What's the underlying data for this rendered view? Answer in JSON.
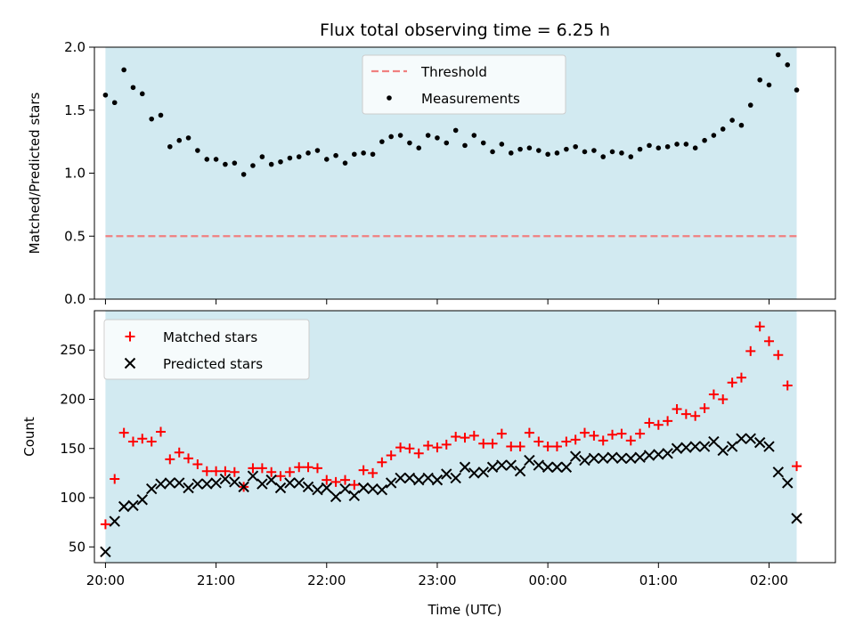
{
  "figure": {
    "title": "Flux total observing time = 6.25 h",
    "xlabel": "Time (UTC)",
    "xticks": [
      "20:00",
      "21:00",
      "22:00",
      "23:00",
      "00:00",
      "01:00",
      "02:00"
    ]
  },
  "chart_data": [
    {
      "type": "scatter",
      "title": "Flux total observing time = 6.25 h",
      "xlabel": "",
      "ylabel": "Matched/Predicted stars",
      "xlim": [
        -0.1,
        6.6
      ],
      "ylim": [
        0,
        2.0
      ],
      "yticks": [
        0.0,
        0.5,
        1.0,
        1.5,
        2.0
      ],
      "ytick_labels": [
        "0.0",
        "0.5",
        "1.0",
        "1.5",
        "2.0"
      ],
      "shaded_span": [
        0,
        6.25
      ],
      "shade_color": "#add8e6",
      "threshold": {
        "name": "Threshold",
        "y": 0.5,
        "color": "#f08080",
        "style": "dashed"
      },
      "legend_position": "upper center",
      "series": [
        {
          "name": "Measurements",
          "marker": "dot",
          "color": "#000000",
          "x": [
            0.0,
            0.083,
            0.167,
            0.25,
            0.333,
            0.417,
            0.5,
            0.583,
            0.667,
            0.75,
            0.833,
            0.917,
            1.0,
            1.083,
            1.167,
            1.25,
            1.333,
            1.417,
            1.5,
            1.583,
            1.667,
            1.75,
            1.833,
            1.917,
            2.0,
            2.083,
            2.167,
            2.25,
            2.333,
            2.417,
            2.5,
            2.583,
            2.667,
            2.75,
            2.833,
            2.917,
            3.0,
            3.083,
            3.167,
            3.25,
            3.333,
            3.417,
            3.5,
            3.583,
            3.667,
            3.75,
            3.833,
            3.917,
            4.0,
            4.083,
            4.167,
            4.25,
            4.333,
            4.417,
            4.5,
            4.583,
            4.667,
            4.75,
            4.833,
            4.917,
            5.0,
            5.083,
            5.167,
            5.25,
            5.333,
            5.417,
            5.5,
            5.583,
            5.667,
            5.75,
            5.833,
            5.917,
            6.0,
            6.083,
            6.167,
            6.25
          ],
          "y": [
            1.62,
            1.56,
            1.82,
            1.68,
            1.63,
            1.43,
            1.46,
            1.21,
            1.26,
            1.28,
            1.18,
            1.11,
            1.11,
            1.07,
            1.08,
            0.99,
            1.06,
            1.13,
            1.07,
            1.09,
            1.12,
            1.13,
            1.16,
            1.18,
            1.11,
            1.14,
            1.08,
            1.15,
            1.16,
            1.15,
            1.25,
            1.29,
            1.3,
            1.24,
            1.2,
            1.3,
            1.28,
            1.24,
            1.34,
            1.22,
            1.3,
            1.24,
            1.17,
            1.23,
            1.16,
            1.19,
            1.2,
            1.18,
            1.15,
            1.16,
            1.19,
            1.21,
            1.17,
            1.18,
            1.13,
            1.17,
            1.16,
            1.13,
            1.19,
            1.22,
            1.2,
            1.21,
            1.23,
            1.23,
            1.2,
            1.26,
            1.3,
            1.35,
            1.42,
            1.38,
            1.54,
            1.74,
            1.7,
            1.94,
            1.86,
            1.66
          ]
        }
      ]
    },
    {
      "type": "scatter",
      "title": "",
      "xlabel": "Time (UTC)",
      "ylabel": "Count",
      "xlim": [
        -0.1,
        6.6
      ],
      "ylim": [
        34,
        290
      ],
      "yticks": [
        50,
        100,
        150,
        200,
        250
      ],
      "ytick_labels": [
        "50",
        "100",
        "150",
        "200",
        "250"
      ],
      "shaded_span": [
        0,
        6.25
      ],
      "shade_color": "#add8e6",
      "legend_position": "upper left",
      "series": [
        {
          "name": "Matched stars",
          "marker": "plus",
          "color": "#ff0000",
          "x": [
            0.0,
            0.083,
            0.167,
            0.25,
            0.333,
            0.417,
            0.5,
            0.583,
            0.667,
            0.75,
            0.833,
            0.917,
            1.0,
            1.083,
            1.167,
            1.25,
            1.333,
            1.417,
            1.5,
            1.583,
            1.667,
            1.75,
            1.833,
            1.917,
            2.0,
            2.083,
            2.167,
            2.25,
            2.333,
            2.417,
            2.5,
            2.583,
            2.667,
            2.75,
            2.833,
            2.917,
            3.0,
            3.083,
            3.167,
            3.25,
            3.333,
            3.417,
            3.5,
            3.583,
            3.667,
            3.75,
            3.833,
            3.917,
            4.0,
            4.083,
            4.167,
            4.25,
            4.333,
            4.417,
            4.5,
            4.583,
            4.667,
            4.75,
            4.833,
            4.917,
            5.0,
            5.083,
            5.167,
            5.25,
            5.333,
            5.417,
            5.5,
            5.583,
            5.667,
            5.75,
            5.833,
            5.917,
            6.0,
            6.083,
            6.167,
            6.25
          ],
          "y": [
            73,
            119,
            166,
            157,
            160,
            157,
            167,
            139,
            146,
            140,
            134,
            127,
            127,
            127,
            126,
            111,
            130,
            130,
            126,
            122,
            126,
            131,
            131,
            130,
            118,
            116,
            118,
            113,
            128,
            125,
            136,
            143,
            151,
            150,
            145,
            153,
            151,
            154,
            162,
            161,
            163,
            155,
            155,
            165,
            152,
            152,
            166,
            157,
            152,
            152,
            157,
            159,
            166,
            163,
            158,
            164,
            165,
            158,
            165,
            176,
            174,
            178,
            190,
            185,
            183,
            191,
            205,
            200,
            217,
            222,
            249,
            274,
            259,
            245,
            214,
            132
          ]
        },
        {
          "name": "Predicted stars",
          "marker": "x",
          "color": "#000000",
          "x": [
            0.0,
            0.083,
            0.167,
            0.25,
            0.333,
            0.417,
            0.5,
            0.583,
            0.667,
            0.75,
            0.833,
            0.917,
            1.0,
            1.083,
            1.167,
            1.25,
            1.333,
            1.417,
            1.5,
            1.583,
            1.667,
            1.75,
            1.833,
            1.917,
            2.0,
            2.083,
            2.167,
            2.25,
            2.333,
            2.417,
            2.5,
            2.583,
            2.667,
            2.75,
            2.833,
            2.917,
            3.0,
            3.083,
            3.167,
            3.25,
            3.333,
            3.417,
            3.5,
            3.583,
            3.667,
            3.75,
            3.833,
            3.917,
            4.0,
            4.083,
            4.167,
            4.25,
            4.333,
            4.417,
            4.5,
            4.583,
            4.667,
            4.75,
            4.833,
            4.917,
            5.0,
            5.083,
            5.167,
            5.25,
            5.333,
            5.417,
            5.5,
            5.583,
            5.667,
            5.75,
            5.833,
            5.917,
            6.0,
            6.083,
            6.167,
            6.25
          ],
          "y": [
            45,
            76,
            91,
            92,
            98,
            109,
            114,
            115,
            115,
            110,
            114,
            114,
            115,
            119,
            116,
            111,
            122,
            114,
            118,
            110,
            115,
            115,
            111,
            108,
            110,
            101,
            109,
            102,
            110,
            109,
            108,
            115,
            120,
            120,
            118,
            120,
            118,
            124,
            120,
            131,
            125,
            126,
            131,
            133,
            133,
            127,
            138,
            133,
            131,
            131,
            131,
            142,
            138,
            140,
            140,
            141,
            140,
            140,
            141,
            143,
            144,
            145,
            150,
            151,
            152,
            152,
            157,
            148,
            152,
            160,
            160,
            156,
            152,
            126,
            115,
            79
          ]
        }
      ]
    }
  ]
}
